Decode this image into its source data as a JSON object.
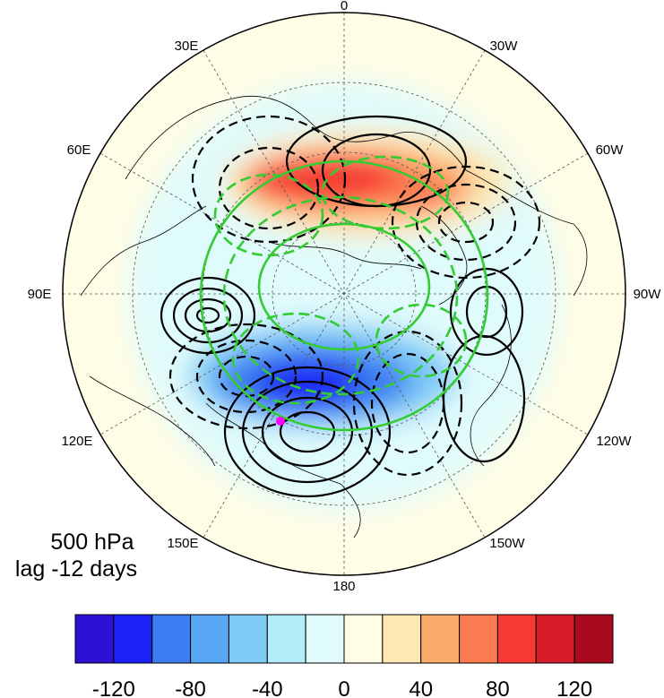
{
  "map": {
    "projection": "north-polar-stereographic",
    "longitude_labels": [
      "0",
      "30W",
      "60W",
      "90W",
      "120W",
      "150W",
      "180",
      "150E",
      "120E",
      "90E",
      "60E",
      "30E"
    ],
    "marker_color": "#ff00ff",
    "contour_positive_color": "#000000",
    "contour_negative_style": "dashed",
    "overlay_contour_color": "#33cc33"
  },
  "annotation": {
    "level": "500 hPa",
    "lag": "lag -12 days"
  },
  "colorbar": {
    "colors": [
      "#2d12d6",
      "#1c22f5",
      "#3c7ef2",
      "#58a7f5",
      "#7ecbf5",
      "#b3edfa",
      "#e0fbfb",
      "#fffde6",
      "#fde8b3",
      "#fbac6b",
      "#fb7a4f",
      "#f73b33",
      "#d71c2a",
      "#a80b1e"
    ],
    "tick_labels": [
      "-120",
      "-80",
      "-40",
      "0",
      "40",
      "80",
      "120"
    ]
  }
}
